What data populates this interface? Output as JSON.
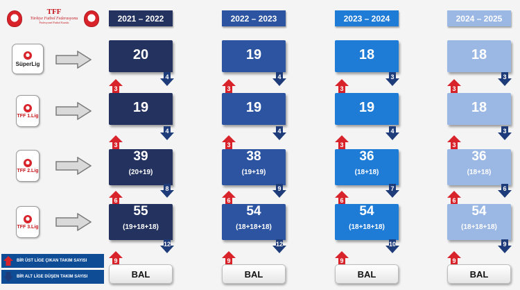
{
  "header": {
    "logo_title": "TFF",
    "logo_subtitle": "Türkiye Futbol Federasyonu",
    "logo_tagline": "Profesyonel Futbol Kurulu"
  },
  "seasons": [
    {
      "label": "2021 – 2022",
      "color": "#23325f"
    },
    {
      "label": "2022 – 2023",
      "color": "#2c54a0"
    },
    {
      "label": "2023 – 2024",
      "color": "#1e7bd6"
    },
    {
      "label": "2024 – 2025",
      "color": "#9bb7e4"
    }
  ],
  "leagues": [
    {
      "name": "SüperLig",
      "icon": "superlig-logo"
    },
    {
      "name": "TFF 1.Lig",
      "icon": "tff-1-lig-logo"
    },
    {
      "name": "TFF 2.Lig",
      "icon": "tff-2-lig-logo"
    },
    {
      "name": "TFF 3.Lig",
      "icon": "tff-3-lig-logo"
    }
  ],
  "grid": [
    [
      {
        "count": "20",
        "sub": "",
        "promoted": "",
        "relegated": "4"
      },
      {
        "count": "19",
        "sub": "",
        "promoted": "3",
        "relegated": "4"
      },
      {
        "count": "39",
        "sub": "(20+19)",
        "promoted": "3",
        "relegated": "8"
      },
      {
        "count": "55",
        "sub": "(19+18+18)",
        "promoted": "6",
        "relegated": "12"
      }
    ],
    [
      {
        "count": "19",
        "sub": "",
        "promoted": "",
        "relegated": "4"
      },
      {
        "count": "19",
        "sub": "",
        "promoted": "3",
        "relegated": "4"
      },
      {
        "count": "38",
        "sub": "(19+19)",
        "promoted": "3",
        "relegated": "9"
      },
      {
        "count": "54",
        "sub": "(18+18+18)",
        "promoted": "6",
        "relegated": "12"
      }
    ],
    [
      {
        "count": "18",
        "sub": "",
        "promoted": "",
        "relegated": "3"
      },
      {
        "count": "19",
        "sub": "",
        "promoted": "3",
        "relegated": "4"
      },
      {
        "count": "36",
        "sub": "(18+18)",
        "promoted": "3",
        "relegated": "7"
      },
      {
        "count": "54",
        "sub": "(18+18+18)",
        "promoted": "6",
        "relegated": "10"
      }
    ],
    [
      {
        "count": "18",
        "sub": "",
        "promoted": "",
        "relegated": "3"
      },
      {
        "count": "18",
        "sub": "",
        "promoted": "3",
        "relegated": "3"
      },
      {
        "count": "36",
        "sub": "(18+18)",
        "promoted": "3",
        "relegated": "6"
      },
      {
        "count": "54",
        "sub": "(18+18+18)",
        "promoted": "6",
        "relegated": "9"
      }
    ]
  ],
  "bal_promoted": [
    "9",
    "9",
    "9",
    "9"
  ],
  "bal_label": "BAL",
  "legend": {
    "up": "BİR ÜST LİGE ÇIKAN TAKIM SAYISI",
    "down": "BİR ALT LİGE DÜŞEN TAKIM SAYISI"
  }
}
